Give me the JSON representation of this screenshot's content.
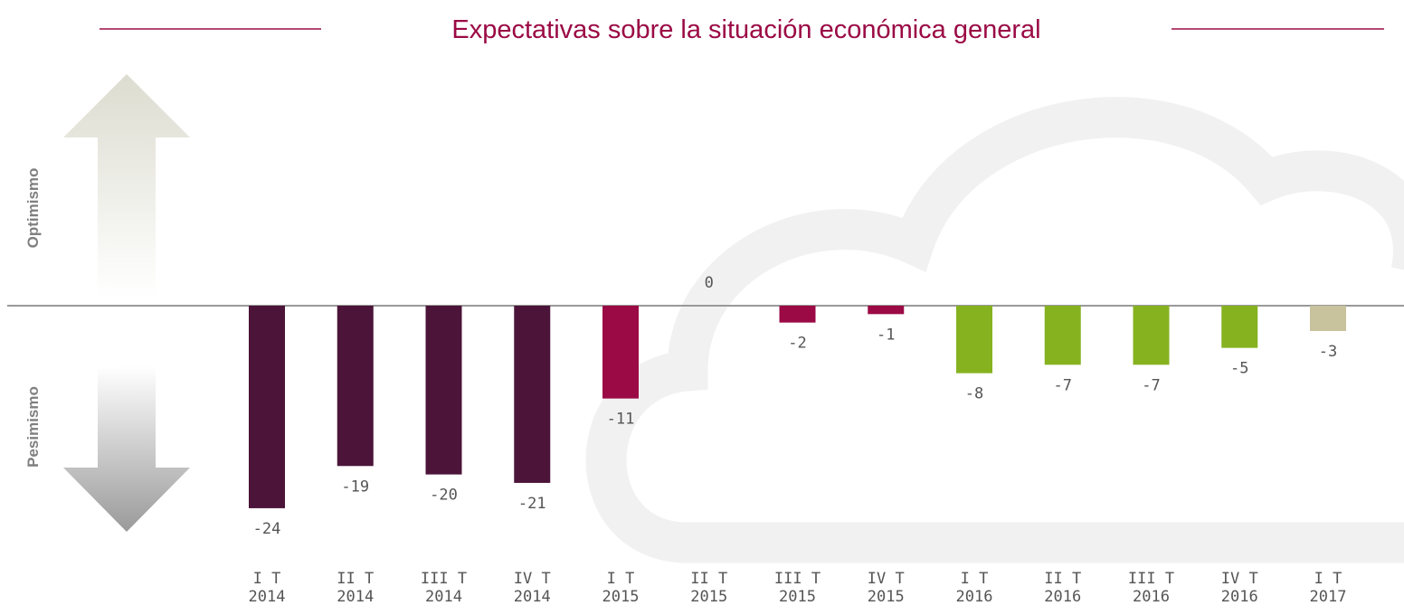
{
  "chart_data": {
    "type": "bar",
    "title": "Expectativas sobre la situación económica general",
    "optimism_label": "Optimismo",
    "pessimism_label": "Pesimismo",
    "categories": [
      "I T\n2014",
      "II T\n2014",
      "III T\n2014",
      "IV T\n2014",
      "I T\n2015",
      "II T\n2015",
      "III T\n2015",
      "IV T\n2015",
      "I T\n2016",
      "II T\n2016",
      "III T\n2016",
      "IV T\n2016",
      "I T\n2017"
    ],
    "values": [
      -24,
      -19,
      -20,
      -21,
      -11,
      0,
      -2,
      -1,
      -8,
      -7,
      -7,
      -5,
      -3
    ],
    "colors": [
      "#4b1438",
      "#4b1438",
      "#4b1438",
      "#4b1438",
      "#9b0a45",
      "#9b0a45",
      "#9b0a45",
      "#9b0a45",
      "#86b220",
      "#86b220",
      "#86b220",
      "#86b220",
      "#c8c29d"
    ]
  }
}
